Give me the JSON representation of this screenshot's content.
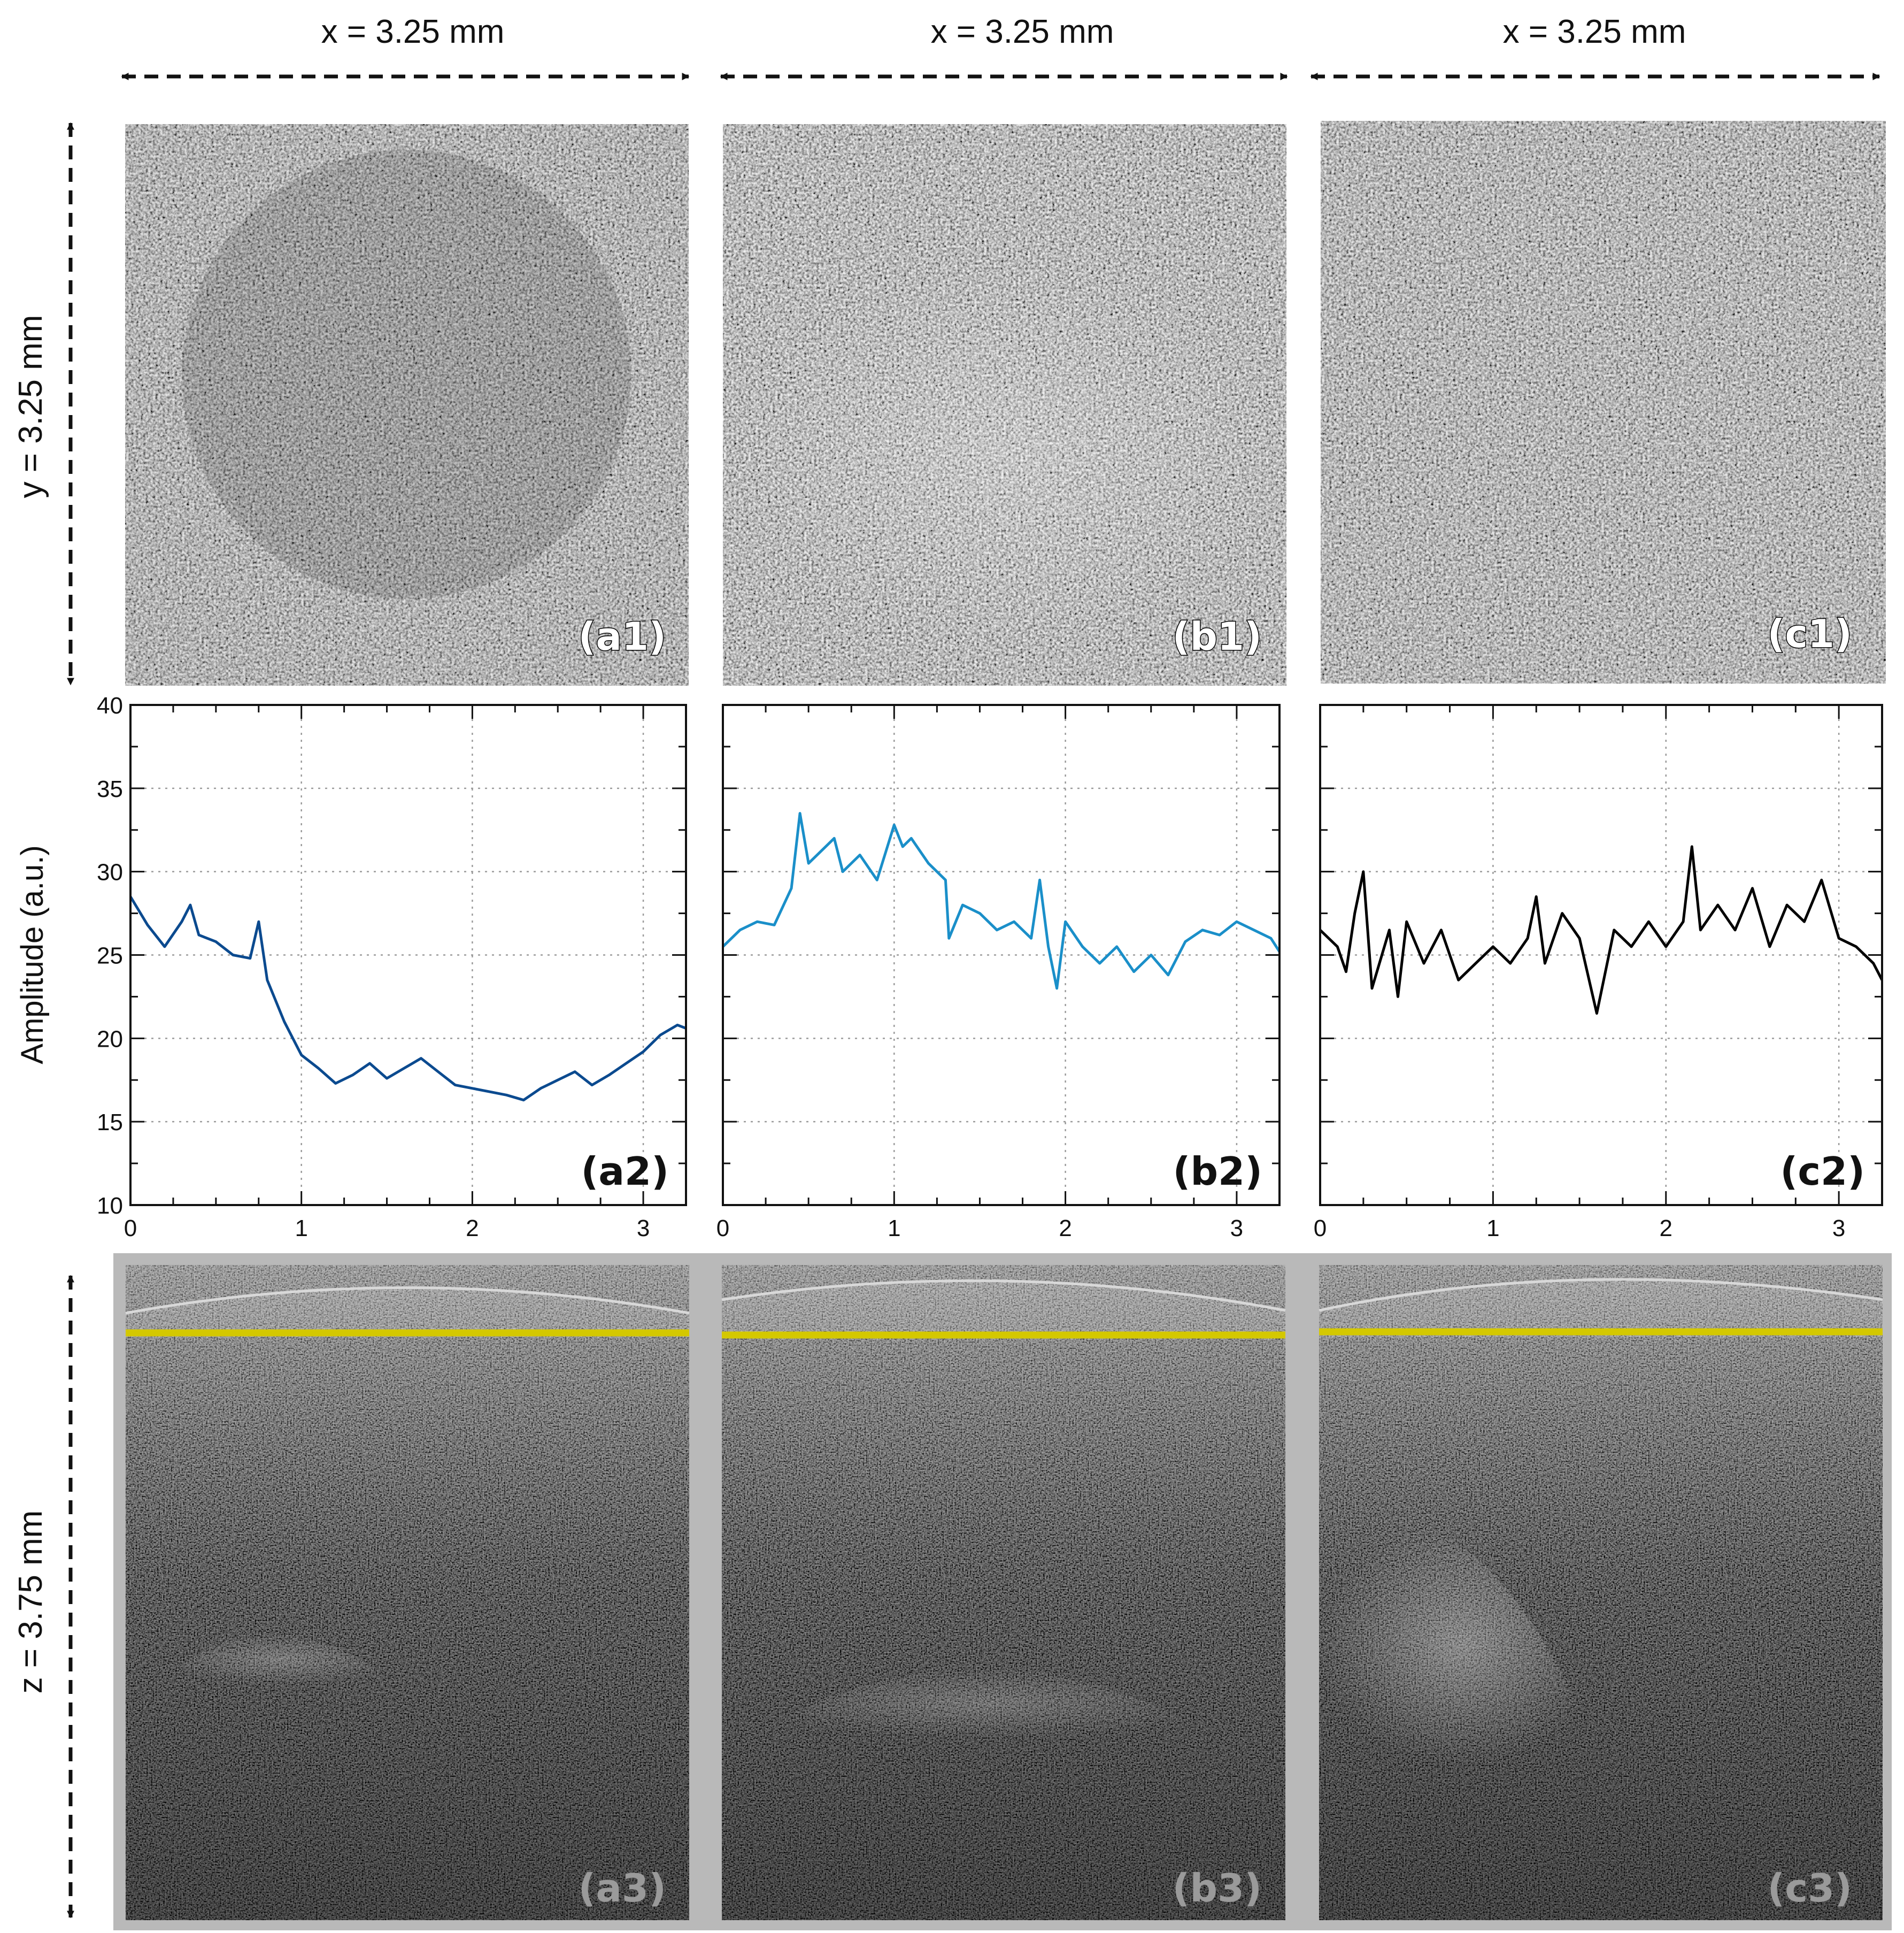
{
  "dimensions": {
    "x": "x = 3.25 mm",
    "y": "y = 3.25 mm",
    "z": "z = 3.75 mm"
  },
  "panel_labels": {
    "a1": "(a1)",
    "b1": "(b1)",
    "c1": "(c1)",
    "a2": "(a2)",
    "b2": "(b2)",
    "c2": "(c2)",
    "a3": "(a3)",
    "b3": "(b3)",
    "c3": "(c3)"
  },
  "colors": {
    "series_a": "#0b4a8f",
    "series_b": "#1a8fc9",
    "series_c": "#000000",
    "reference_line": "#d4c800",
    "panel_frame": "#b9b9b9"
  },
  "chart_data": [
    {
      "type": "line",
      "panel": "(a2)",
      "ylabel": "Amplitude (a.u.)",
      "xlim": [
        0,
        3.25
      ],
      "ylim": [
        10,
        40
      ],
      "x_ticks": [
        "0",
        "1",
        "2",
        "3"
      ],
      "y_ticks": [
        "10",
        "15",
        "20",
        "25",
        "30",
        "35",
        "40"
      ],
      "grid": true,
      "x": [
        0.0,
        0.1,
        0.2,
        0.3,
        0.35,
        0.4,
        0.5,
        0.6,
        0.7,
        0.75,
        0.8,
        0.9,
        1.0,
        1.1,
        1.2,
        1.3,
        1.4,
        1.5,
        1.6,
        1.7,
        1.8,
        1.9,
        2.0,
        2.1,
        2.2,
        2.3,
        2.4,
        2.5,
        2.6,
        2.7,
        2.8,
        2.9,
        3.0,
        3.1,
        3.2,
        3.25
      ],
      "y": [
        28.5,
        26.8,
        25.5,
        27.0,
        28.0,
        26.2,
        25.8,
        25.0,
        24.8,
        27.0,
        23.5,
        21.0,
        19.0,
        18.2,
        17.3,
        17.8,
        18.5,
        17.6,
        18.2,
        18.8,
        18.0,
        17.2,
        17.0,
        16.8,
        16.6,
        16.3,
        17.0,
        17.5,
        18.0,
        17.2,
        17.8,
        18.5,
        19.2,
        20.2,
        20.8,
        20.6
      ]
    },
    {
      "type": "line",
      "panel": "(b2)",
      "xlim": [
        0,
        3.25
      ],
      "ylim": [
        10,
        40
      ],
      "x_ticks": [
        "0",
        "1",
        "2",
        "3"
      ],
      "grid": true,
      "x": [
        0.0,
        0.1,
        0.2,
        0.3,
        0.4,
        0.45,
        0.5,
        0.6,
        0.65,
        0.7,
        0.8,
        0.9,
        1.0,
        1.05,
        1.1,
        1.2,
        1.3,
        1.32,
        1.4,
        1.5,
        1.6,
        1.7,
        1.8,
        1.85,
        1.9,
        1.95,
        2.0,
        2.1,
        2.2,
        2.3,
        2.4,
        2.5,
        2.6,
        2.7,
        2.8,
        2.9,
        3.0,
        3.1,
        3.2,
        3.25
      ],
      "y": [
        25.5,
        26.5,
        27.0,
        26.8,
        29.0,
        33.5,
        30.5,
        31.5,
        32.0,
        30.0,
        31.0,
        29.5,
        32.8,
        31.5,
        32.0,
        30.5,
        29.5,
        26.0,
        28.0,
        27.5,
        26.5,
        27.0,
        26.0,
        29.5,
        25.5,
        23.0,
        27.0,
        25.5,
        24.5,
        25.5,
        24.0,
        25.0,
        23.8,
        25.8,
        26.5,
        26.2,
        27.0,
        26.5,
        26.0,
        25.2
      ]
    },
    {
      "type": "line",
      "panel": "(c2)",
      "xlim": [
        0,
        3.25
      ],
      "ylim": [
        10,
        40
      ],
      "x_ticks": [
        "0",
        "1",
        "2",
        "3"
      ],
      "grid": true,
      "x": [
        0.0,
        0.1,
        0.15,
        0.2,
        0.25,
        0.3,
        0.4,
        0.45,
        0.5,
        0.6,
        0.7,
        0.8,
        0.9,
        1.0,
        1.1,
        1.2,
        1.25,
        1.3,
        1.4,
        1.5,
        1.6,
        1.7,
        1.8,
        1.9,
        2.0,
        2.1,
        2.15,
        2.2,
        2.3,
        2.4,
        2.5,
        2.6,
        2.7,
        2.8,
        2.9,
        3.0,
        3.1,
        3.2,
        3.25
      ],
      "y": [
        26.5,
        25.5,
        24.0,
        27.5,
        30.0,
        23.0,
        26.5,
        22.5,
        27.0,
        24.5,
        26.5,
        23.5,
        24.5,
        25.5,
        24.5,
        26.0,
        28.5,
        24.5,
        27.5,
        26.0,
        21.5,
        26.5,
        25.5,
        27.0,
        25.5,
        27.0,
        31.5,
        26.5,
        28.0,
        26.5,
        29.0,
        25.5,
        28.0,
        27.0,
        29.5,
        26.0,
        25.5,
        24.5,
        23.5
      ]
    }
  ]
}
